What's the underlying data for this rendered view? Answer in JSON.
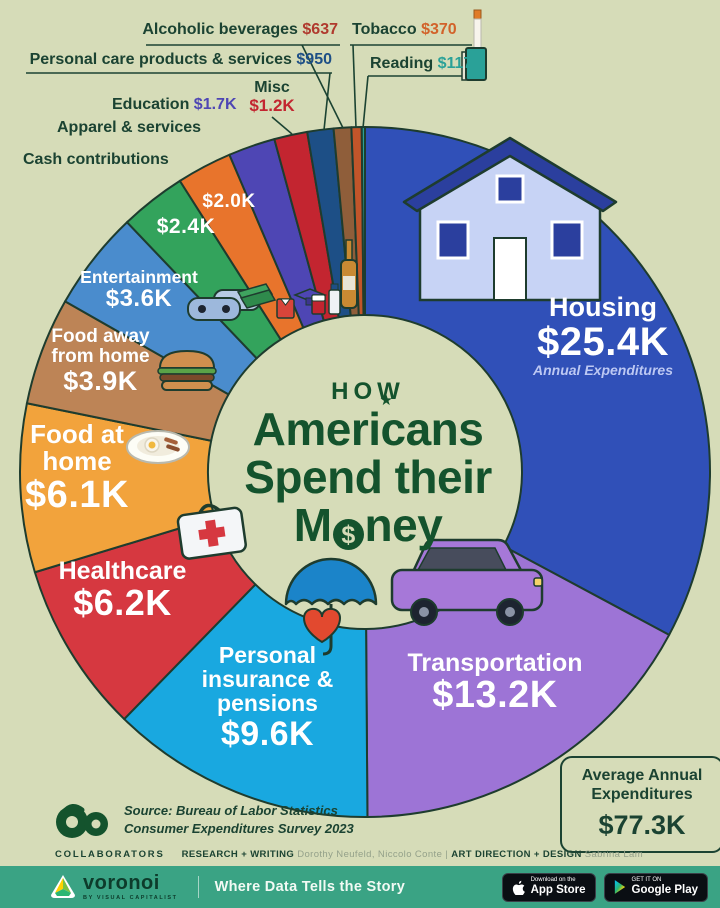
{
  "title": {
    "kicker": "HOW",
    "line1": "Americans",
    "line2": "Spend their",
    "money_prefix": "M",
    "money_symbol": "$",
    "money_suffix": "ney",
    "star": "★"
  },
  "chart_data": {
    "type": "pie",
    "subtype": "donut",
    "title": "How Americans Spend their Money",
    "units": "USD, average annual expenditures",
    "source": "Bureau of Labor Statistics Consumer Expenditures Survey 2023",
    "start_angle_deg": 0,
    "direction": "clockwise",
    "total": {
      "value": 77300,
      "value_display": "$77.3K"
    },
    "segments": [
      {
        "label": "Housing",
        "value": 25400,
        "value_display": "$25.4K",
        "color": "#3050b8",
        "sub": "Annual Expenditures"
      },
      {
        "label": "Transportation",
        "value": 13200,
        "value_display": "$13.2K",
        "color": "#9d74d6"
      },
      {
        "label": "Personal insurance & pensions",
        "value": 9600,
        "value_display": "$9.6K",
        "color": "#19a8e0"
      },
      {
        "label": "Healthcare",
        "value": 6200,
        "value_display": "$6.2K",
        "color": "#d63840"
      },
      {
        "label": "Food at home",
        "value": 6100,
        "value_display": "$6.1K",
        "color": "#f2a33c"
      },
      {
        "label": "Food away from home",
        "value": 3900,
        "value_display": "$3.9K",
        "color": "#bd8456"
      },
      {
        "label": "Entertainment",
        "value": 3600,
        "value_display": "$3.6K",
        "color": "#4a8ccd"
      },
      {
        "label": "Cash contributions",
        "value": 2400,
        "value_display": "$2.4K",
        "color": "#33a35c"
      },
      {
        "label": "Apparel & services",
        "value": 2000,
        "value_display": "$2.0K",
        "color": "#e8742c"
      },
      {
        "label": "Education",
        "value": 1700,
        "value_display": "$1.7K",
        "color": "#4e46b4",
        "value_color": "#4e46b4"
      },
      {
        "label": "Misc",
        "value": 1200,
        "value_display": "$1.2K",
        "color": "#c32530",
        "value_color": "#c32530"
      },
      {
        "label": "Personal care products & services",
        "value": 950,
        "value_display": "$950",
        "color": "#1d4f86",
        "value_color": "#1d4f86"
      },
      {
        "label": "Alcoholic beverages",
        "value": 637,
        "value_display": "$637",
        "color": "#8f5e3a",
        "value_color": "#b03a2e"
      },
      {
        "label": "Tobacco",
        "value": 370,
        "value_display": "$370",
        "color": "#c2552a",
        "value_color": "#d2622a"
      },
      {
        "label": "Reading",
        "value": 117,
        "value_display": "$117",
        "color": "#2aa198",
        "value_color": "#2aa198"
      }
    ]
  },
  "average_box": {
    "line1": "Average Annual",
    "line2": "Expenditures",
    "value": "$77.3K"
  },
  "source_block": {
    "line1": "Source: Bureau of Labor Statistics",
    "line2": "Consumer Expenditures Survey 2023"
  },
  "collaborators": {
    "heading": "COLLABORATORS",
    "research_label": "RESEARCH + WRITING",
    "research_names": "Dorothy Neufeld, Niccolo Conte",
    "divider": "|",
    "design_label": "ART DIRECTION + DESIGN",
    "design_names": "Sabrina Lam"
  },
  "footer": {
    "brand": "voronoi",
    "brand_sub": "BY VISUAL CAPITALIST",
    "tagline": "Where Data Tells the Story",
    "appstore_top": "Download on the",
    "appstore_bottom": "App Store",
    "play_top": "GET IT ON",
    "play_bottom": "Google Play",
    "bar_color": "#3aa384"
  }
}
